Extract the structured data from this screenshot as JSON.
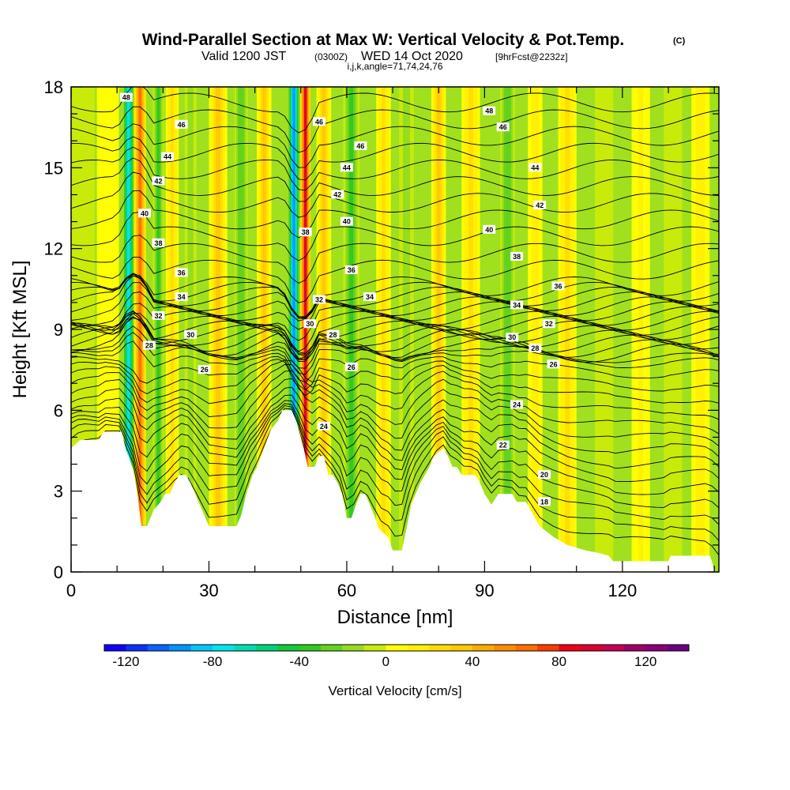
{
  "title": "Wind-Parallel Section at Max W: Vertical Velocity & Pot.Temp.",
  "title_mark": "(C)",
  "subtitle": {
    "valid": "Valid 1200 JST",
    "utc": "(0300Z)",
    "date": "WED 14 Oct 2020",
    "forecast": "[9hrFcst@2232z]"
  },
  "indices": "i,j,k,angle=71,74,24,76",
  "chart_data": {
    "type": "heatmap",
    "xlabel": "Distance [nm]",
    "ylabel": "Height [Kft MSL]",
    "xlim": [
      0,
      141
    ],
    "ylim": [
      0,
      18
    ],
    "x_ticks": [
      "0",
      "30",
      "60",
      "90",
      "120"
    ],
    "x_tick_values": [
      0,
      30,
      60,
      90,
      120
    ],
    "y_ticks": [
      "0",
      "3",
      "6",
      "9",
      "12",
      "15",
      "18"
    ],
    "y_tick_values": [
      0,
      3,
      6,
      9,
      12,
      15,
      18
    ],
    "colorbar": {
      "label": "Vertical Velocity [cm/s]",
      "range": [
        -130,
        140
      ],
      "step": 10,
      "tick_labels": [
        "-120",
        "-80",
        "-40",
        "0",
        "40",
        "80",
        "120"
      ],
      "tick_values": [
        -120,
        -80,
        -40,
        0,
        40,
        80,
        120
      ],
      "colors": [
        "#1400ff",
        "#0a32ff",
        "#0a64ff",
        "#0096ff",
        "#00c8ff",
        "#00e6f0",
        "#00dcb4",
        "#00d278",
        "#14c83c",
        "#32c81e",
        "#64d21e",
        "#96dc1e",
        "#c8eb0a",
        "#ffff00",
        "#fff000",
        "#ffdc00",
        "#ffc800",
        "#ffaa00",
        "#ff8c00",
        "#ff6e00",
        "#ff3c00",
        "#f00014",
        "#dc0032",
        "#c80050",
        "#a00064",
        "#8c0078",
        "#6e0082"
      ]
    },
    "vertical_velocity_bands": [
      {
        "x": 2,
        "w": 4,
        "v": -5
      },
      {
        "x": 8,
        "w": 3,
        "v": 5
      },
      {
        "x": 12.5,
        "w": 1.6,
        "v": -75
      },
      {
        "x": 15,
        "w": 1.6,
        "v": 60
      },
      {
        "x": 19,
        "w": 1.5,
        "v": -35
      },
      {
        "x": 22,
        "w": 1.8,
        "v": 25
      },
      {
        "x": 26,
        "w": 1.6,
        "v": -20
      },
      {
        "x": 32,
        "w": 2.5,
        "v": 35
      },
      {
        "x": 37,
        "w": 1.8,
        "v": -30
      },
      {
        "x": 42,
        "w": 2,
        "v": 30
      },
      {
        "x": 48.5,
        "w": 1.5,
        "v": -95
      },
      {
        "x": 51,
        "w": 1.4,
        "v": 90
      },
      {
        "x": 55,
        "w": 2,
        "v": 30
      },
      {
        "x": 61,
        "w": 2.2,
        "v": -40
      },
      {
        "x": 68,
        "w": 2,
        "v": 25
      },
      {
        "x": 73,
        "w": 2,
        "v": -20
      },
      {
        "x": 80,
        "w": 2,
        "v": 35
      },
      {
        "x": 87,
        "w": 2.5,
        "v": 20
      },
      {
        "x": 95,
        "w": 2,
        "v": -30
      },
      {
        "x": 101,
        "w": 2,
        "v": 15
      },
      {
        "x": 108,
        "w": 2.5,
        "v": 20
      },
      {
        "x": 116,
        "w": 2.5,
        "v": -10
      },
      {
        "x": 124,
        "w": 2.5,
        "v": 12
      },
      {
        "x": 131,
        "w": 2.5,
        "v": -5
      },
      {
        "x": 137,
        "w": 2.5,
        "v": 15
      }
    ],
    "terrain": [
      [
        0,
        4.6
      ],
      [
        2,
        4.9
      ],
      [
        6,
        4.9
      ],
      [
        7,
        5.2
      ],
      [
        11,
        5.2
      ],
      [
        12,
        4.5
      ],
      [
        12.5,
        4.3
      ],
      [
        13.5,
        3.8
      ],
      [
        14.5,
        2.8
      ],
      [
        15.3,
        1.7
      ],
      [
        16.5,
        1.7
      ],
      [
        17,
        1.9
      ],
      [
        18,
        2.3
      ],
      [
        19.5,
        2.6
      ],
      [
        20.5,
        2.9
      ],
      [
        21.5,
        2.9
      ],
      [
        22.5,
        3.3
      ],
      [
        23.5,
        3.6
      ],
      [
        25,
        3.6
      ],
      [
        26,
        3.3
      ],
      [
        27,
        2.9
      ],
      [
        28,
        2.5
      ],
      [
        29,
        2.1
      ],
      [
        30,
        1.7
      ],
      [
        36,
        1.7
      ],
      [
        37,
        2.1
      ],
      [
        38,
        2.8
      ],
      [
        39.5,
        3.6
      ],
      [
        40.5,
        3.9
      ],
      [
        42,
        4.6
      ],
      [
        43.5,
        5.3
      ],
      [
        45,
        5.6
      ],
      [
        46,
        6.0
      ],
      [
        48,
        6.0
      ],
      [
        49,
        5.6
      ],
      [
        50,
        5.0
      ],
      [
        51,
        4.3
      ],
      [
        51.5,
        3.9
      ],
      [
        53,
        3.9
      ],
      [
        54,
        4.3
      ],
      [
        55,
        4.3
      ],
      [
        56,
        3.6
      ],
      [
        57,
        3.6
      ],
      [
        58,
        3.3
      ],
      [
        59,
        2.9
      ],
      [
        59.5,
        2.5
      ],
      [
        60,
        2.0
      ],
      [
        61,
        2.0
      ],
      [
        62,
        2.5
      ],
      [
        63,
        2.9
      ],
      [
        64,
        2.9
      ],
      [
        65,
        2.5
      ],
      [
        66,
        2.1
      ],
      [
        67,
        1.6
      ],
      [
        69,
        1.3
      ],
      [
        70,
        0.8
      ],
      [
        72,
        0.8
      ],
      [
        73,
        1.6
      ],
      [
        74,
        2.5
      ],
      [
        75,
        2.9
      ],
      [
        76,
        3.3
      ],
      [
        77,
        3.6
      ],
      [
        78,
        3.9
      ],
      [
        79,
        4.3
      ],
      [
        81,
        4.6
      ],
      [
        82,
        4.3
      ],
      [
        83,
        3.9
      ],
      [
        84,
        3.9
      ],
      [
        85,
        3.6
      ],
      [
        88,
        3.6
      ],
      [
        89,
        3.3
      ],
      [
        90,
        2.9
      ],
      [
        91.5,
        2.5
      ],
      [
        93,
        2.9
      ],
      [
        96,
        2.9
      ],
      [
        97,
        2.6
      ],
      [
        99,
        2.6
      ],
      [
        100,
        2.3
      ],
      [
        101,
        2.0
      ],
      [
        102,
        1.7
      ],
      [
        105,
        1.3
      ],
      [
        108,
        1.0
      ],
      [
        112,
        0.8
      ],
      [
        115,
        0.7
      ],
      [
        117,
        0.6
      ],
      [
        118,
        0.4
      ],
      [
        130,
        0.4
      ],
      [
        130.5,
        0.6
      ],
      [
        139,
        0.6
      ],
      [
        139.5,
        0.4
      ],
      [
        140,
        0
      ]
    ],
    "theta_contours": {
      "levels": [
        18,
        20,
        22,
        24,
        26,
        28,
        30,
        32,
        34,
        36,
        38,
        40,
        42,
        44,
        46,
        48
      ],
      "level_labels": [
        {
          "text": "48",
          "x": 12,
          "y": 17.6
        },
        {
          "text": "46",
          "x": 24,
          "y": 16.6
        },
        {
          "text": "44",
          "x": 21,
          "y": 15.4
        },
        {
          "text": "42",
          "x": 19,
          "y": 14.5
        },
        {
          "text": "40",
          "x": 16,
          "y": 13.3
        },
        {
          "text": "38",
          "x": 19,
          "y": 12.2
        },
        {
          "text": "36",
          "x": 24,
          "y": 11.1
        },
        {
          "text": "34",
          "x": 24,
          "y": 10.2
        },
        {
          "text": "32",
          "x": 19,
          "y": 9.5
        },
        {
          "text": "30",
          "x": 26,
          "y": 8.8
        },
        {
          "text": "28",
          "x": 17,
          "y": 8.4
        },
        {
          "text": "26",
          "x": 29,
          "y": 7.5
        },
        {
          "text": "46",
          "x": 54,
          "y": 16.7
        },
        {
          "text": "46",
          "x": 63,
          "y": 15.8
        },
        {
          "text": "44",
          "x": 60,
          "y": 15.0
        },
        {
          "text": "42",
          "x": 58,
          "y": 14.0
        },
        {
          "text": "40",
          "x": 60,
          "y": 13.0
        },
        {
          "text": "38",
          "x": 51,
          "y": 12.6
        },
        {
          "text": "36",
          "x": 61,
          "y": 11.2
        },
        {
          "text": "34",
          "x": 65,
          "y": 10.2
        },
        {
          "text": "32",
          "x": 54,
          "y": 10.1
        },
        {
          "text": "30",
          "x": 52,
          "y": 9.2
        },
        {
          "text": "28",
          "x": 57,
          "y": 8.8
        },
        {
          "text": "26",
          "x": 61,
          "y": 7.6
        },
        {
          "text": "24",
          "x": 55,
          "y": 5.4
        },
        {
          "text": "48",
          "x": 91,
          "y": 17.1
        },
        {
          "text": "46",
          "x": 94,
          "y": 16.5
        },
        {
          "text": "44",
          "x": 101,
          "y": 15.0
        },
        {
          "text": "42",
          "x": 102,
          "y": 13.6
        },
        {
          "text": "40",
          "x": 91,
          "y": 12.7
        },
        {
          "text": "38",
          "x": 97,
          "y": 11.7
        },
        {
          "text": "36",
          "x": 106,
          "y": 10.6
        },
        {
          "text": "34",
          "x": 97,
          "y": 9.9
        },
        {
          "text": "32",
          "x": 104,
          "y": 9.2
        },
        {
          "text": "30",
          "x": 96,
          "y": 8.7
        },
        {
          "text": "28",
          "x": 101,
          "y": 8.3
        },
        {
          "text": "26",
          "x": 105,
          "y": 7.7
        },
        {
          "text": "24",
          "x": 97,
          "y": 6.2
        },
        {
          "text": "22",
          "x": 94,
          "y": 4.7
        },
        {
          "text": "20",
          "x": 103,
          "y": 3.6
        },
        {
          "text": "18",
          "x": 103,
          "y": 2.6
        }
      ]
    }
  }
}
